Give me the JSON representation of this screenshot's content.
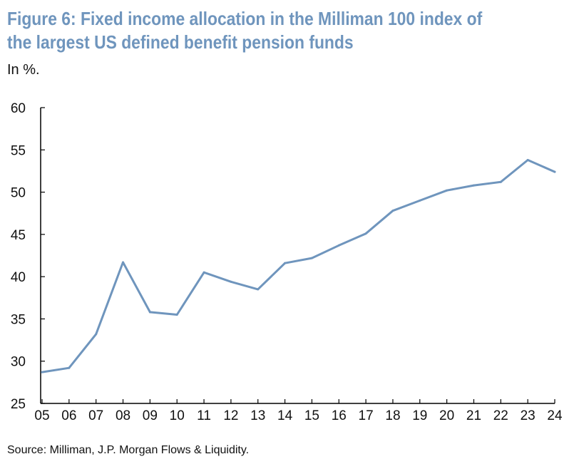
{
  "title": "Figure 6: Fixed income allocation in the Milliman 100 index of the largest US defined benefit pension funds",
  "subtitle": "In %.",
  "source": "Source: Milliman, J.P. Morgan Flows & Liquidity.",
  "chart_data": {
    "type": "line",
    "title": "Figure 6: Fixed income allocation in the Milliman 100 index of the largest US defined benefit pension funds",
    "subtitle": "In %.",
    "xlabel": "",
    "ylabel": "",
    "categories": [
      "05",
      "06",
      "07",
      "08",
      "09",
      "10",
      "11",
      "12",
      "13",
      "14",
      "15",
      "16",
      "17",
      "18",
      "19",
      "20",
      "21",
      "22",
      "23",
      "24"
    ],
    "series": [
      {
        "values": [
          28.7,
          29.2,
          33.2,
          41.7,
          35.8,
          35.5,
          40.5,
          39.4,
          38.5,
          41.6,
          42.2,
          43.7,
          45.1,
          47.8,
          49.0,
          50.2,
          50.8,
          51.2,
          53.8,
          52.4
        ]
      }
    ],
    "ylim": [
      25,
      60
    ],
    "yticks": [
      25,
      30,
      35,
      40,
      45,
      50,
      55,
      60
    ],
    "grid": false,
    "legend": "none",
    "line_color": "#6f95bd",
    "axis_color": "#000000"
  }
}
